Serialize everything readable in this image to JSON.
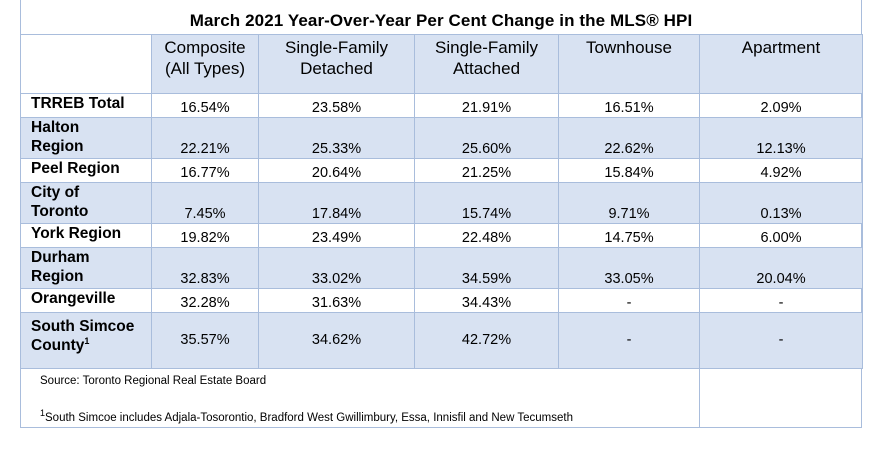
{
  "title": "March 2021 Year-Over-Year Per Cent Change in the MLS® HPI",
  "columns": [
    [
      "Composite",
      "(All Types)"
    ],
    [
      "Single-Family",
      "Detached"
    ],
    [
      "Single-Family",
      "Attached"
    ],
    [
      "Townhouse",
      ""
    ],
    [
      "Apartment",
      ""
    ]
  ],
  "rows": [
    {
      "label": [
        "TRREB Total"
      ],
      "values": [
        "16.54%",
        "23.58%",
        "21.91%",
        "16.51%",
        "2.09%"
      ]
    },
    {
      "label": [
        "Halton",
        "Region"
      ],
      "values": [
        "22.21%",
        "25.33%",
        "25.60%",
        "22.62%",
        "12.13%"
      ]
    },
    {
      "label": [
        "Peel Region"
      ],
      "values": [
        "16.77%",
        "20.64%",
        "21.25%",
        "15.84%",
        "4.92%"
      ]
    },
    {
      "label": [
        "City of",
        "Toronto"
      ],
      "values": [
        "7.45%",
        "17.84%",
        "15.74%",
        "9.71%",
        "0.13%"
      ]
    },
    {
      "label": [
        "York Region"
      ],
      "values": [
        "19.82%",
        "23.49%",
        "22.48%",
        "14.75%",
        "6.00%"
      ]
    },
    {
      "label": [
        "Durham",
        "Region"
      ],
      "values": [
        "32.83%",
        "33.02%",
        "34.59%",
        "33.05%",
        "20.04%"
      ]
    },
    {
      "label": [
        "Orangeville"
      ],
      "values": [
        "32.28%",
        "31.63%",
        "34.43%",
        "-",
        "-"
      ]
    },
    {
      "label": [
        "South Simcoe",
        "County"
      ],
      "footnote_mark": "1",
      "values": [
        "35.57%",
        "34.62%",
        "42.72%",
        "-",
        "-"
      ]
    }
  ],
  "notes": {
    "source": "Source: Toronto Regional Real Estate Board",
    "footnote_mark": "1",
    "footnote": "South Simcoe includes Adjala-Tosorontio, Bradford West Gwillimbury, Essa, Innisfil and New Tecumseth"
  }
}
